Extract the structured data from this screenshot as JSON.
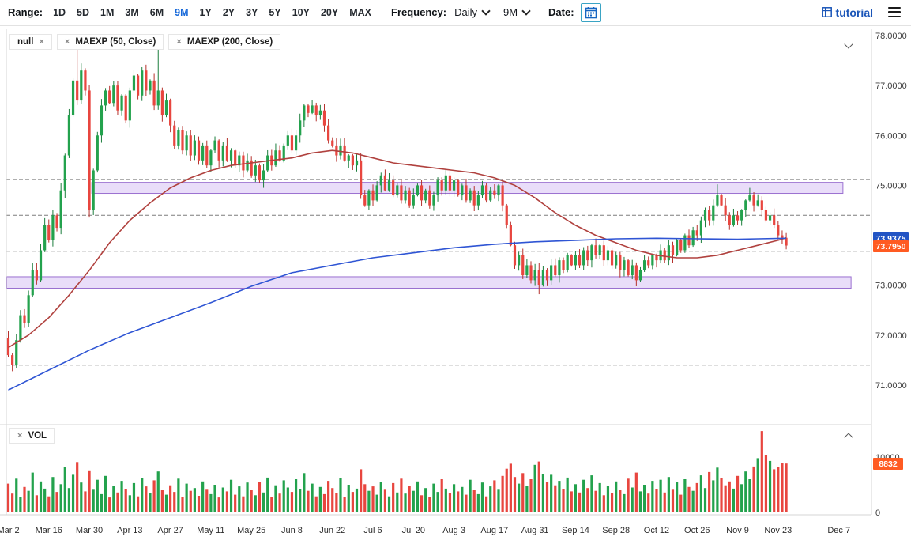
{
  "toolbar": {
    "range_label": "Range:",
    "ranges": [
      "1D",
      "5D",
      "1M",
      "3M",
      "6M",
      "9M",
      "1Y",
      "2Y",
      "3Y",
      "5Y",
      "10Y",
      "20Y",
      "MAX"
    ],
    "active_range": "9M",
    "frequency_label": "Frequency:",
    "frequency_value": "Daily",
    "period_value": "9M",
    "date_label": "Date:",
    "brand": "tutorial"
  },
  "price_panel": {
    "legend": [
      {
        "label": "null"
      },
      {
        "label": "MAEXP (50, Close)"
      },
      {
        "label": "MAEXP (200, Close)"
      }
    ],
    "badges": [
      {
        "value": "73.9375",
        "color": "#2254c4"
      },
      {
        "value": "73.7950",
        "color": "#ff5b22"
      }
    ]
  },
  "volume_panel": {
    "legend": "VOL",
    "badge": {
      "value": "8832",
      "color": "#ff5b22"
    }
  },
  "chart_data": {
    "type": "candlestick",
    "symbol": "null",
    "frequency": "Daily",
    "range": "9M",
    "first_open": 71.95,
    "closes": [
      71.6,
      71.4,
      71.9,
      72.4,
      72.25,
      72.8,
      73.3,
      73.1,
      73.7,
      74.2,
      73.9,
      74.4,
      74.15,
      74.9,
      75.6,
      76.4,
      77.1,
      76.7,
      77.3,
      76.9,
      74.5,
      75.3,
      76.0,
      76.6,
      76.9,
      76.65,
      77.0,
      76.5,
      76.8,
      76.3,
      76.9,
      77.2,
      76.8,
      77.3,
      76.9,
      77.1,
      76.6,
      76.9,
      76.4,
      76.7,
      76.2,
      75.8,
      76.1,
      75.7,
      76.0,
      75.6,
      75.9,
      75.5,
      75.8,
      75.4,
      75.7,
      75.9,
      75.5,
      75.8,
      75.5,
      75.7,
      75.4,
      75.6,
      75.3,
      75.5,
      75.2,
      75.4,
      75.1,
      75.3,
      75.6,
      75.4,
      75.7,
      75.5,
      75.8,
      76.0,
      75.7,
      76.0,
      76.3,
      76.6,
      76.45,
      76.6,
      76.4,
      76.5,
      76.2,
      75.9,
      75.8,
      75.6,
      75.8,
      75.5,
      75.6,
      75.4,
      75.5,
      74.8,
      74.6,
      74.9,
      74.7,
      75.0,
      75.2,
      74.9,
      75.1,
      74.8,
      75.0,
      74.7,
      74.9,
      74.6,
      74.8,
      75.0,
      74.7,
      74.9,
      74.6,
      74.8,
      75.1,
      74.9,
      75.2,
      74.9,
      75.1,
      74.8,
      75.0,
      74.7,
      74.9,
      74.6,
      74.8,
      75.0,
      74.7,
      74.9,
      74.8,
      75.0,
      74.6,
      74.2,
      73.8,
      73.4,
      73.6,
      73.2,
      73.4,
      73.1,
      73.3,
      73.0,
      73.3,
      73.1,
      73.4,
      73.2,
      73.5,
      73.3,
      73.6,
      73.4,
      73.6,
      73.4,
      73.7,
      73.5,
      73.8,
      73.6,
      73.8,
      73.5,
      73.7,
      73.4,
      73.6,
      73.3,
      73.5,
      73.2,
      73.4,
      73.1,
      73.3,
      73.5,
      73.4,
      73.6,
      73.5,
      73.7,
      73.5,
      73.8,
      73.6,
      73.9,
      73.7,
      74.0,
      73.8,
      74.1,
      74.0,
      74.3,
      74.5,
      74.3,
      74.6,
      74.8,
      74.6,
      74.4,
      74.2,
      74.4,
      74.3,
      74.5,
      74.7,
      74.8,
      74.6,
      74.7,
      74.5,
      74.3,
      74.4,
      74.2,
      74.0,
      73.95,
      73.795
    ],
    "volumes": [
      5200,
      3400,
      6100,
      2800,
      4600,
      3900,
      7200,
      3100,
      5600,
      4300,
      2900,
      6400,
      3700,
      5100,
      8200,
      4400,
      6800,
      9100,
      5400,
      3800,
      7600,
      4100,
      5900,
      3300,
      6600,
      2700,
      4800,
      3600,
      5700,
      4200,
      3100,
      5300,
      2900,
      6200,
      4700,
      3500,
      5800,
      7400,
      4000,
      3200,
      4900,
      3700,
      6100,
      2800,
      5200,
      3900,
      4400,
      3000,
      5600,
      4100,
      3300,
      5000,
      2700,
      4500,
      3800,
      5900,
      3200,
      4700,
      2900,
      5400,
      4000,
      3100,
      5500,
      3600,
      6300,
      2800,
      4900,
      3400,
      5800,
      4500,
      3700,
      6000,
      4200,
      7100,
      3900,
      5200,
      2900,
      4600,
      3300,
      5700,
      4400,
      3500,
      6200,
      2800,
      5000,
      3700,
      4300,
      7800,
      5100,
      3900,
      4700,
      3200,
      5500,
      4100,
      2900,
      5300,
      3600,
      6100,
      3400,
      4800,
      3900,
      5600,
      3100,
      4400,
      2800,
      5200,
      3700,
      6000,
      4300,
      3500,
      5100,
      3800,
      4600,
      3200,
      5900,
      4000,
      3300,
      5400,
      2900,
      4700,
      5800,
      4100,
      6600,
      7900,
      8800,
      6400,
      5200,
      7100,
      4800,
      6000,
      8600,
      9200,
      7000,
      5500,
      6800,
      4900,
      5700,
      4200,
      6300,
      3800,
      5100,
      3600,
      5900,
      4400,
      6700,
      3900,
      5300,
      3100,
      4800,
      3500,
      5600,
      4000,
      3300,
      6100,
      4500,
      7200,
      3800,
      5000,
      3400,
      5700,
      4200,
      5900,
      3600,
      6400,
      4100,
      5500,
      3200,
      6000,
      4600,
      3900,
      5300,
      6700,
      4400,
      7300,
      5800,
      8100,
      6200,
      4900,
      5600,
      4300,
      6600,
      5100,
      7400,
      6000,
      8300,
      9800,
      14700,
      10400,
      9300,
      7800,
      8200,
      8900,
      8832
    ],
    "wick_overrides": {
      "17": {
        "high": 77.9
      },
      "37": {
        "high": 77.95
      },
      "131": {
        "low": 72.82
      },
      "155": {
        "low": 72.98
      },
      "175": {
        "high": 75.02
      },
      "183": {
        "high": 74.95
      }
    },
    "overlays": [
      {
        "name": "MAEXP (50, Close)",
        "type": "ema",
        "color": "#b0413e",
        "points": [
          [
            0,
            71.75
          ],
          [
            5,
            72.0
          ],
          [
            10,
            72.35
          ],
          [
            15,
            72.8
          ],
          [
            20,
            73.3
          ],
          [
            25,
            73.85
          ],
          [
            30,
            74.3
          ],
          [
            35,
            74.65
          ],
          [
            40,
            74.95
          ],
          [
            45,
            75.15
          ],
          [
            50,
            75.3
          ],
          [
            55,
            75.4
          ],
          [
            60,
            75.45
          ],
          [
            65,
            75.5
          ],
          [
            70,
            75.55
          ],
          [
            75,
            75.65
          ],
          [
            80,
            75.7
          ],
          [
            85,
            75.65
          ],
          [
            90,
            75.55
          ],
          [
            95,
            75.45
          ],
          [
            100,
            75.4
          ],
          [
            105,
            75.35
          ],
          [
            110,
            75.3
          ],
          [
            115,
            75.25
          ],
          [
            120,
            75.15
          ],
          [
            125,
            75.0
          ],
          [
            130,
            74.75
          ],
          [
            135,
            74.45
          ],
          [
            140,
            74.2
          ],
          [
            145,
            74.0
          ],
          [
            150,
            73.85
          ],
          [
            155,
            73.7
          ],
          [
            160,
            73.6
          ],
          [
            165,
            73.55
          ],
          [
            170,
            73.55
          ],
          [
            175,
            73.6
          ],
          [
            180,
            73.7
          ],
          [
            185,
            73.8
          ],
          [
            190,
            73.9
          ],
          [
            192,
            73.95
          ]
        ]
      },
      {
        "name": "MAEXP (200, Close)",
        "type": "ema",
        "color": "#2f55d4",
        "points": [
          [
            0,
            70.9
          ],
          [
            10,
            71.3
          ],
          [
            20,
            71.7
          ],
          [
            30,
            72.05
          ],
          [
            40,
            72.35
          ],
          [
            50,
            72.65
          ],
          [
            60,
            72.98
          ],
          [
            70,
            73.25
          ],
          [
            80,
            73.4
          ],
          [
            90,
            73.55
          ],
          [
            100,
            73.65
          ],
          [
            110,
            73.75
          ],
          [
            120,
            73.82
          ],
          [
            130,
            73.87
          ],
          [
            140,
            73.9
          ],
          [
            150,
            73.93
          ],
          [
            160,
            73.94
          ],
          [
            170,
            73.93
          ],
          [
            180,
            73.92
          ],
          [
            185,
            73.93
          ],
          [
            192,
            73.94
          ]
        ]
      }
    ],
    "bands": [
      {
        "price_low": 74.84,
        "price_high": 75.06,
        "i_start": 21,
        "i_end": 206
      },
      {
        "price_low": 72.94,
        "price_high": 73.17,
        "i_start": 0,
        "i_end": 208
      }
    ],
    "dashed_levels": [
      75.12,
      74.4,
      73.68,
      71.4
    ],
    "y_axis": {
      "min": 70.3,
      "max": 78.0,
      "tick_labels": [
        "78.0000",
        "77.0000",
        "76.0000",
        "75.0000",
        "74.0000",
        "73.0000",
        "72.0000",
        "71.0000"
      ]
    },
    "volume_axis": {
      "labels": [
        {
          "value": "10000",
          "v": 10000
        },
        {
          "value": "0",
          "v": 0
        }
      ],
      "last_value": 8832,
      "max": 15500
    },
    "x_ticks": [
      {
        "label": "Mar 2",
        "i": 0
      },
      {
        "label": "Mar 16",
        "i": 10
      },
      {
        "label": "Mar 30",
        "i": 20
      },
      {
        "label": "Apr 13",
        "i": 30
      },
      {
        "label": "Apr 27",
        "i": 40
      },
      {
        "label": "May 11",
        "i": 50
      },
      {
        "label": "May 25",
        "i": 60
      },
      {
        "label": "Jun 8",
        "i": 70
      },
      {
        "label": "Jun 22",
        "i": 80
      },
      {
        "label": "Jul 6",
        "i": 90
      },
      {
        "label": "Jul 20",
        "i": 100
      },
      {
        "label": "Aug 3",
        "i": 110
      },
      {
        "label": "Aug 17",
        "i": 120
      },
      {
        "label": "Aug 31",
        "i": 130
      },
      {
        "label": "Sep 14",
        "i": 140
      },
      {
        "label": "Sep 28",
        "i": 150
      },
      {
        "label": "Oct 12",
        "i": 160
      },
      {
        "label": "Oct 26",
        "i": 170
      },
      {
        "label": "Nov 9",
        "i": 180
      },
      {
        "label": "Nov 23",
        "i": 190
      },
      {
        "label": "Dec 7",
        "i": 205
      }
    ],
    "last_price": "73.7950",
    "ma200_last": "73.9375",
    "colors": {
      "up": "#23a24d",
      "down": "#e8463f",
      "band_fill": "rgba(186,150,236,0.32)",
      "band_border": "#9a6fd0",
      "dashed_line": "#7d7d7d",
      "panel_border": "#d6d6d6",
      "axis_text": "#3c3c3c"
    }
  }
}
